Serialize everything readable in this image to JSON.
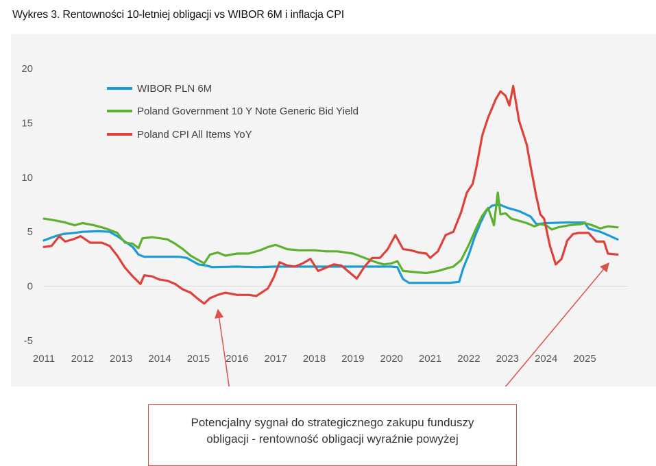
{
  "caption": "Wykres 3. Rentowności 10-letniej obligacji vs WIBOR 6M i inflacja CPI",
  "annotation": {
    "line1": "Potencjalny sygnał do strategicznego zakupu funduszy",
    "line2": "obligacji - rentowność obligacji wyraźnie powyżej"
  },
  "chart_data": {
    "type": "line",
    "title": "Wykres 3. Rentowności 10-letniej obligacji vs WIBOR 6M i inflacja CPI",
    "xlabel": "",
    "ylabel": "",
    "xlim": [
      2011,
      2025.85
    ],
    "ylim": [
      -5,
      20
    ],
    "grid": false,
    "legend_position": "top-left",
    "x_ticks": [
      "2011",
      "2012",
      "2013",
      "2014",
      "2015",
      "2016",
      "2017",
      "2018",
      "2019",
      "2020",
      "2021",
      "2022",
      "2023",
      "2024",
      "2025"
    ],
    "y_ticks": [
      "20",
      "15",
      "10",
      "5",
      "0",
      "-5"
    ],
    "series": [
      {
        "name": "WIBOR PLN 6M",
        "color": "#1a9ad6",
        "points": [
          [
            2011,
            4.2
          ],
          [
            2011.3,
            4.6
          ],
          [
            2011.5,
            4.8
          ],
          [
            2011.8,
            4.9
          ],
          [
            2012,
            5.0
          ],
          [
            2012.4,
            5.05
          ],
          [
            2012.7,
            5.0
          ],
          [
            2012.9,
            4.6
          ],
          [
            2013.1,
            4.1
          ],
          [
            2013.3,
            3.6
          ],
          [
            2013.45,
            2.9
          ],
          [
            2013.6,
            2.7
          ],
          [
            2014,
            2.7
          ],
          [
            2014.5,
            2.7
          ],
          [
            2014.7,
            2.6
          ],
          [
            2014.85,
            2.3
          ],
          [
            2015,
            2.0
          ],
          [
            2015.2,
            1.9
          ],
          [
            2015.35,
            1.75
          ],
          [
            2016,
            1.8
          ],
          [
            2016.5,
            1.75
          ],
          [
            2017,
            1.8
          ],
          [
            2018,
            1.8
          ],
          [
            2019,
            1.8
          ],
          [
            2020,
            1.8
          ],
          [
            2020.15,
            1.75
          ],
          [
            2020.22,
            1.2
          ],
          [
            2020.3,
            0.65
          ],
          [
            2020.45,
            0.3
          ],
          [
            2021,
            0.3
          ],
          [
            2021.5,
            0.3
          ],
          [
            2021.75,
            0.4
          ],
          [
            2021.85,
            1.6
          ],
          [
            2022,
            2.9
          ],
          [
            2022.15,
            4.5
          ],
          [
            2022.3,
            5.8
          ],
          [
            2022.45,
            6.9
          ],
          [
            2022.6,
            7.4
          ],
          [
            2022.8,
            7.5
          ],
          [
            2023,
            7.2
          ],
          [
            2023.3,
            6.9
          ],
          [
            2023.6,
            6.4
          ],
          [
            2023.75,
            5.7
          ],
          [
            2024,
            5.8
          ],
          [
            2024.5,
            5.85
          ],
          [
            2025,
            5.85
          ],
          [
            2025.1,
            5.3
          ],
          [
            2025.4,
            5.0
          ],
          [
            2025.6,
            4.7
          ],
          [
            2025.85,
            4.3
          ]
        ]
      },
      {
        "name": "Poland Government 10 Y Note Generic Bid Yield",
        "color": "#5cb130",
        "points": [
          [
            2011,
            6.2
          ],
          [
            2011.2,
            6.1
          ],
          [
            2011.5,
            5.9
          ],
          [
            2011.8,
            5.6
          ],
          [
            2012,
            5.8
          ],
          [
            2012.3,
            5.6
          ],
          [
            2012.6,
            5.3
          ],
          [
            2012.9,
            4.9
          ],
          [
            2013.1,
            4.0
          ],
          [
            2013.3,
            3.9
          ],
          [
            2013.45,
            3.5
          ],
          [
            2013.55,
            4.4
          ],
          [
            2013.8,
            4.5
          ],
          [
            2014,
            4.4
          ],
          [
            2014.2,
            4.3
          ],
          [
            2014.4,
            3.9
          ],
          [
            2014.6,
            3.4
          ],
          [
            2014.8,
            2.8
          ],
          [
            2015,
            2.4
          ],
          [
            2015.15,
            2.1
          ],
          [
            2015.3,
            2.9
          ],
          [
            2015.5,
            3.1
          ],
          [
            2015.7,
            2.8
          ],
          [
            2016,
            3.0
          ],
          [
            2016.3,
            3.0
          ],
          [
            2016.6,
            3.3
          ],
          [
            2016.8,
            3.6
          ],
          [
            2017,
            3.8
          ],
          [
            2017.3,
            3.4
          ],
          [
            2017.6,
            3.3
          ],
          [
            2018,
            3.3
          ],
          [
            2018.3,
            3.2
          ],
          [
            2018.6,
            3.2
          ],
          [
            2019,
            3.0
          ],
          [
            2019.3,
            2.6
          ],
          [
            2019.6,
            2.2
          ],
          [
            2019.8,
            2.0
          ],
          [
            2020,
            2.1
          ],
          [
            2020.15,
            2.3
          ],
          [
            2020.3,
            1.4
          ],
          [
            2020.6,
            1.3
          ],
          [
            2020.9,
            1.2
          ],
          [
            2021.2,
            1.4
          ],
          [
            2021.4,
            1.6
          ],
          [
            2021.6,
            1.8
          ],
          [
            2021.8,
            2.4
          ],
          [
            2022,
            3.8
          ],
          [
            2022.2,
            5.4
          ],
          [
            2022.35,
            6.5
          ],
          [
            2022.5,
            7.2
          ],
          [
            2022.65,
            5.6
          ],
          [
            2022.75,
            8.6
          ],
          [
            2022.82,
            6.6
          ],
          [
            2022.95,
            6.7
          ],
          [
            2023.1,
            6.2
          ],
          [
            2023.3,
            6.0
          ],
          [
            2023.5,
            5.8
          ],
          [
            2023.7,
            5.5
          ],
          [
            2023.85,
            5.7
          ],
          [
            2024,
            5.6
          ],
          [
            2024.15,
            5.2
          ],
          [
            2024.3,
            5.4
          ],
          [
            2024.6,
            5.6
          ],
          [
            2024.9,
            5.7
          ],
          [
            2025,
            5.8
          ],
          [
            2025.2,
            5.6
          ],
          [
            2025.4,
            5.3
          ],
          [
            2025.6,
            5.5
          ],
          [
            2025.85,
            5.4
          ]
        ]
      },
      {
        "name": "Poland CPI All Items YoY",
        "color": "#e0403a",
        "points": [
          [
            2011,
            3.6
          ],
          [
            2011.2,
            3.7
          ],
          [
            2011.4,
            4.6
          ],
          [
            2011.55,
            4.1
          ],
          [
            2011.75,
            4.3
          ],
          [
            2011.95,
            4.6
          ],
          [
            2012.2,
            4.0
          ],
          [
            2012.5,
            4.0
          ],
          [
            2012.7,
            3.7
          ],
          [
            2012.9,
            2.8
          ],
          [
            2013.1,
            1.7
          ],
          [
            2013.3,
            0.9
          ],
          [
            2013.5,
            0.2
          ],
          [
            2013.6,
            1.0
          ],
          [
            2013.8,
            0.9
          ],
          [
            2014,
            0.6
          ],
          [
            2014.2,
            0.5
          ],
          [
            2014.4,
            0.2
          ],
          [
            2014.6,
            -0.3
          ],
          [
            2014.8,
            -0.6
          ],
          [
            2015,
            -1.2
          ],
          [
            2015.15,
            -1.6
          ],
          [
            2015.3,
            -1.1
          ],
          [
            2015.5,
            -0.8
          ],
          [
            2015.7,
            -0.6
          ],
          [
            2016,
            -0.8
          ],
          [
            2016.3,
            -0.8
          ],
          [
            2016.5,
            -0.9
          ],
          [
            2016.8,
            -0.2
          ],
          [
            2016.95,
            0.8
          ],
          [
            2017.1,
            2.2
          ],
          [
            2017.3,
            1.9
          ],
          [
            2017.5,
            1.8
          ],
          [
            2017.7,
            2.1
          ],
          [
            2017.9,
            2.5
          ],
          [
            2018.1,
            1.4
          ],
          [
            2018.3,
            1.7
          ],
          [
            2018.5,
            2.0
          ],
          [
            2018.7,
            1.9
          ],
          [
            2018.9,
            1.3
          ],
          [
            2019.1,
            0.7
          ],
          [
            2019.3,
            1.8
          ],
          [
            2019.5,
            2.6
          ],
          [
            2019.7,
            2.6
          ],
          [
            2019.9,
            3.4
          ],
          [
            2020.1,
            4.7
          ],
          [
            2020.3,
            3.4
          ],
          [
            2020.5,
            3.3
          ],
          [
            2020.7,
            3.1
          ],
          [
            2020.9,
            3.0
          ],
          [
            2021,
            2.6
          ],
          [
            2021.2,
            3.2
          ],
          [
            2021.4,
            4.7
          ],
          [
            2021.6,
            5.0
          ],
          [
            2021.8,
            6.8
          ],
          [
            2021.95,
            8.6
          ],
          [
            2022.1,
            9.4
          ],
          [
            2022.2,
            11.0
          ],
          [
            2022.35,
            13.9
          ],
          [
            2022.5,
            15.5
          ],
          [
            2022.7,
            17.2
          ],
          [
            2022.82,
            17.9
          ],
          [
            2022.95,
            17.5
          ],
          [
            2023.05,
            16.6
          ],
          [
            2023.15,
            18.4
          ],
          [
            2023.3,
            15.2
          ],
          [
            2023.5,
            13.0
          ],
          [
            2023.6,
            11.0
          ],
          [
            2023.75,
            8.2
          ],
          [
            2023.85,
            6.6
          ],
          [
            2023.95,
            6.2
          ],
          [
            2024.1,
            3.7
          ],
          [
            2024.25,
            2.0
          ],
          [
            2024.4,
            2.5
          ],
          [
            2024.55,
            4.2
          ],
          [
            2024.7,
            4.8
          ],
          [
            2024.85,
            4.9
          ],
          [
            2025.1,
            4.9
          ],
          [
            2025.3,
            4.1
          ],
          [
            2025.5,
            4.1
          ],
          [
            2025.6,
            3.0
          ],
          [
            2025.85,
            2.9
          ]
        ]
      }
    ]
  }
}
